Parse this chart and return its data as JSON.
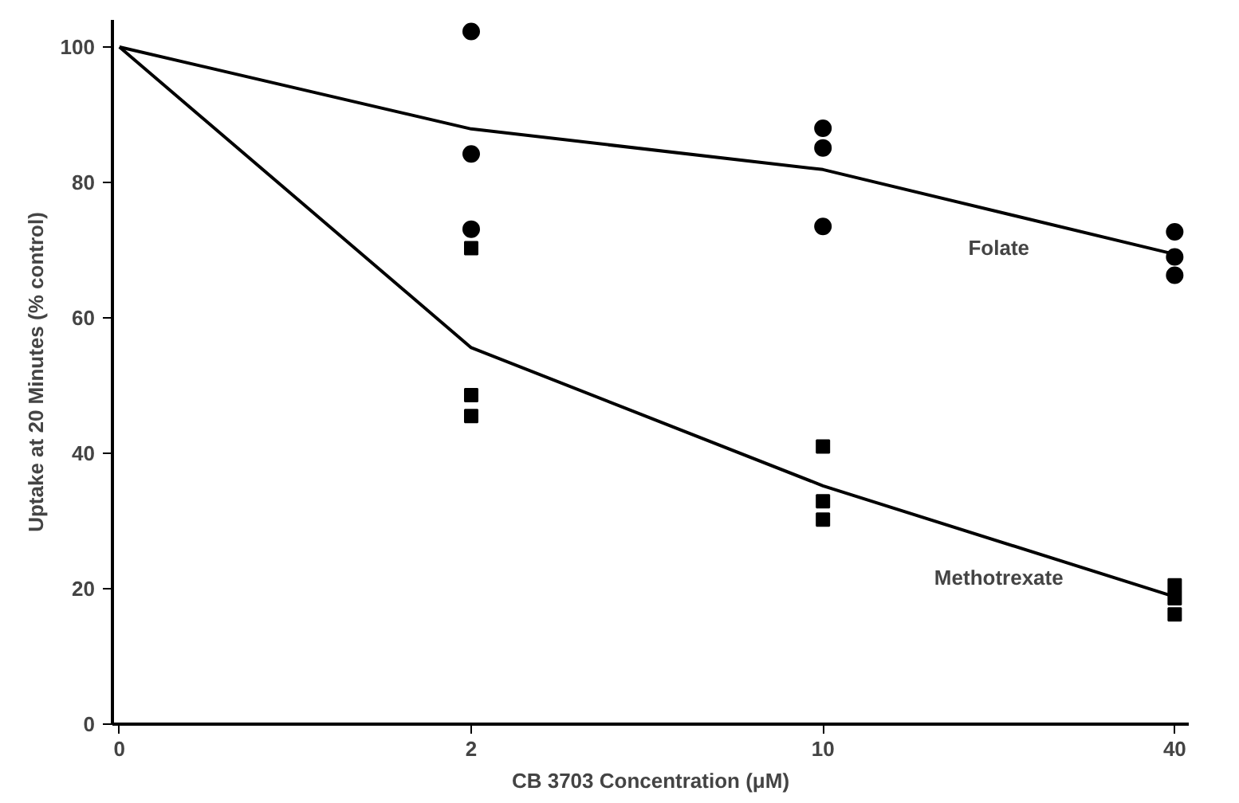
{
  "chart_data": {
    "type": "line",
    "xlabel": "CB 3703 Concentration (μM)",
    "ylabel": "Uptake at 20 Minutes (% control)",
    "categories": [
      "0",
      "2",
      "10",
      "40"
    ],
    "ylim": [
      0,
      104
    ],
    "yticks": [
      0,
      20,
      40,
      60,
      80,
      100
    ],
    "grid": false,
    "series": [
      {
        "name": "Folate",
        "color": "#000000",
        "marker": "none",
        "values": [
          100,
          87.9,
          81.9,
          69.4
        ]
      },
      {
        "name": "Methotrexate",
        "color": "#000000",
        "marker": "none",
        "values": [
          100,
          55.6,
          35.2,
          18.8
        ]
      },
      {
        "type": "scatter",
        "color": "#000000",
        "marker": "circle",
        "x": [
          "2",
          "2",
          "2",
          "10",
          "10",
          "10",
          "40",
          "40",
          "40"
        ],
        "values": [
          102.3,
          84.2,
          73.1,
          88.0,
          85.1,
          73.5,
          72.7,
          69.0,
          66.3
        ]
      },
      {
        "type": "scatter",
        "color": "#000000",
        "marker": "square",
        "x": [
          "2",
          "2",
          "2",
          "10",
          "10",
          "10",
          "40",
          "40",
          "40"
        ],
        "values": [
          70.3,
          48.6,
          45.5,
          41.0,
          32.9,
          30.2,
          20.5,
          18.6,
          16.2
        ]
      }
    ]
  }
}
